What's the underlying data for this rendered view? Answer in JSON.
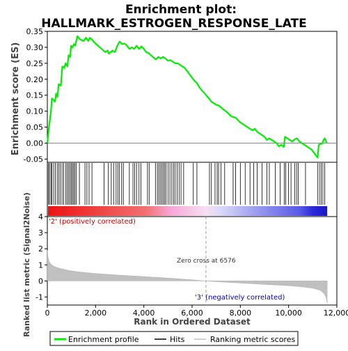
{
  "title_line1": "Enrichment plot:",
  "title_line2": "HALLMARK_ESTROGEN_RESPONSE_LATE",
  "colors": {
    "enrichment_line": "#00ee00",
    "hits": "#000000",
    "metric_fill": "#c0c0c0",
    "pos_label": "#cc0000",
    "neg_label": "#0000cc",
    "zero_line": "#a0a0a0"
  },
  "chart_data": {
    "type": "line",
    "panels": [
      "enrichment_score",
      "hits",
      "ranked_metric"
    ],
    "enrichment": {
      "ylabel": "Enrichment score (ES)",
      "ylim": [
        -0.06,
        0.35
      ],
      "yticks": [
        "-0.05",
        "0.00",
        "0.05",
        "0.10",
        "0.15",
        "0.20",
        "0.25",
        "0.30",
        "0.35"
      ],
      "ytick_values": [
        -0.05,
        0.0,
        0.05,
        0.1,
        0.15,
        0.2,
        0.25,
        0.3,
        0.35
      ],
      "points": [
        [
          0,
          0.0
        ],
        [
          60,
          0.045
        ],
        [
          150,
          0.1
        ],
        [
          190,
          0.14
        ],
        [
          320,
          0.13
        ],
        [
          360,
          0.155
        ],
        [
          420,
          0.145
        ],
        [
          470,
          0.185
        ],
        [
          560,
          0.18
        ],
        [
          620,
          0.24
        ],
        [
          700,
          0.235
        ],
        [
          760,
          0.25
        ],
        [
          830,
          0.24
        ],
        [
          880,
          0.275
        ],
        [
          950,
          0.27
        ],
        [
          980,
          0.305
        ],
        [
          1050,
          0.3
        ],
        [
          1100,
          0.31
        ],
        [
          1150,
          0.305
        ],
        [
          1250,
          0.335
        ],
        [
          1350,
          0.325
        ],
        [
          1500,
          0.32
        ],
        [
          1600,
          0.33
        ],
        [
          1700,
          0.32
        ],
        [
          1760,
          0.33
        ],
        [
          1850,
          0.325
        ],
        [
          1950,
          0.315
        ],
        [
          2100,
          0.305
        ],
        [
          2250,
          0.295
        ],
        [
          2400,
          0.285
        ],
        [
          2500,
          0.29
        ],
        [
          2550,
          0.28
        ],
        [
          2700,
          0.29
        ],
        [
          2800,
          0.285
        ],
        [
          2900,
          0.305
        ],
        [
          3000,
          0.318
        ],
        [
          3100,
          0.31
        ],
        [
          3200,
          0.312
        ],
        [
          3300,
          0.305
        ],
        [
          3400,
          0.295
        ],
        [
          3500,
          0.3
        ],
        [
          3600,
          0.295
        ],
        [
          3700,
          0.305
        ],
        [
          3800,
          0.295
        ],
        [
          3900,
          0.303
        ],
        [
          4000,
          0.295
        ],
        [
          4100,
          0.285
        ],
        [
          4200,
          0.282
        ],
        [
          4300,
          0.275
        ],
        [
          4400,
          0.268
        ],
        [
          4500,
          0.262
        ],
        [
          4600,
          0.27
        ],
        [
          4700,
          0.265
        ],
        [
          4800,
          0.27
        ],
        [
          4900,
          0.265
        ],
        [
          5000,
          0.258
        ],
        [
          5100,
          0.26
        ],
        [
          5200,
          0.255
        ],
        [
          5300,
          0.25
        ],
        [
          5400,
          0.25
        ],
        [
          5500,
          0.245
        ],
        [
          5600,
          0.24
        ],
        [
          5700,
          0.235
        ],
        [
          5800,
          0.225
        ],
        [
          5900,
          0.215
        ],
        [
          6000,
          0.205
        ],
        [
          6100,
          0.195
        ],
        [
          6200,
          0.188
        ],
        [
          6300,
          0.175
        ],
        [
          6400,
          0.165
        ],
        [
          6500,
          0.158
        ],
        [
          6600,
          0.148
        ],
        [
          6700,
          0.14
        ],
        [
          6800,
          0.13
        ],
        [
          6900,
          0.125
        ],
        [
          7000,
          0.12
        ],
        [
          7100,
          0.118
        ],
        [
          7200,
          0.112
        ],
        [
          7300,
          0.105
        ],
        [
          7400,
          0.1
        ],
        [
          7500,
          0.093
        ],
        [
          7600,
          0.085
        ],
        [
          7700,
          0.082
        ],
        [
          7800,
          0.08
        ],
        [
          7900,
          0.072
        ],
        [
          8000,
          0.065
        ],
        [
          8100,
          0.06
        ],
        [
          8200,
          0.055
        ],
        [
          8300,
          0.05
        ],
        [
          8400,
          0.045
        ],
        [
          8500,
          0.04
        ],
        [
          8600,
          0.045
        ],
        [
          8700,
          0.035
        ],
        [
          8800,
          0.03
        ],
        [
          8900,
          0.025
        ],
        [
          9000,
          0.02
        ],
        [
          9100,
          0.01
        ],
        [
          9200,
          0.015
        ],
        [
          9300,
          0.01
        ],
        [
          9400,
          0.005
        ],
        [
          9500,
          0.0
        ],
        [
          9600,
          -0.01
        ],
        [
          9700,
          -0.005
        ],
        [
          9800,
          -0.012
        ],
        [
          9850,
          0.02
        ],
        [
          9950,
          0.015
        ],
        [
          10050,
          0.01
        ],
        [
          10150,
          0.005
        ],
        [
          10250,
          0.012
        ],
        [
          10350,
          0.015
        ],
        [
          10450,
          0.005
        ],
        [
          10550,
          0.0
        ],
        [
          10650,
          -0.005
        ],
        [
          10750,
          -0.01
        ],
        [
          10850,
          -0.015
        ],
        [
          10950,
          -0.02
        ],
        [
          11050,
          -0.03
        ],
        [
          11150,
          -0.04
        ],
        [
          11200,
          -0.045
        ],
        [
          11250,
          -0.005
        ],
        [
          11350,
          -0.002
        ],
        [
          11400,
          0.0
        ],
        [
          11450,
          0.01
        ],
        [
          11500,
          0.015
        ],
        [
          11550,
          0.005
        ],
        [
          11600,
          0.002
        ]
      ]
    },
    "hits_positions": [
      50,
      90,
      150,
      190,
      260,
      330,
      410,
      470,
      540,
      610,
      680,
      760,
      820,
      880,
      940,
      990,
      1040,
      1090,
      1140,
      1200,
      1330,
      1560,
      1640,
      1730,
      1850,
      2350,
      2530,
      2650,
      2750,
      2850,
      2920,
      2990,
      3080,
      3150,
      3400,
      3550,
      3620,
      3700,
      3800,
      3880,
      4150,
      4220,
      4480,
      4560,
      4620,
      4680,
      4740,
      4800,
      4860,
      4920,
      5000,
      5080,
      5160,
      5230,
      5300,
      5380,
      5460,
      5540,
      5650,
      6050,
      6200,
      6720,
      6800,
      6950,
      7040,
      7100,
      7200,
      7350,
      7700,
      7800,
      8000,
      8200,
      8400,
      8550,
      8700,
      8900,
      9100,
      9200,
      9450,
      9650,
      9820,
      9880,
      10000,
      10100,
      10250,
      10330,
      10400,
      10700,
      11200,
      11280,
      11350,
      11420,
      11500
    ],
    "metric": {
      "ylabel": "Ranked list metric (Signal2Noise)",
      "ylim": [
        -1.5,
        4
      ],
      "yticks": [
        "-1",
        "0",
        "1",
        "2",
        "3",
        "4"
      ],
      "ytick_values": [
        -1,
        0,
        1,
        2,
        3,
        4
      ],
      "curve": [
        [
          0,
          1.9
        ],
        [
          30,
          1.45
        ],
        [
          80,
          1.2
        ],
        [
          150,
          1.05
        ],
        [
          250,
          0.93
        ],
        [
          400,
          0.83
        ],
        [
          600,
          0.75
        ],
        [
          900,
          0.65
        ],
        [
          1300,
          0.56
        ],
        [
          2000,
          0.46
        ],
        [
          3000,
          0.36
        ],
        [
          4000,
          0.27
        ],
        [
          5000,
          0.18
        ],
        [
          6000,
          0.07
        ],
        [
          6576,
          0.0
        ],
        [
          7000,
          -0.05
        ],
        [
          8000,
          -0.13
        ],
        [
          9000,
          -0.22
        ],
        [
          10000,
          -0.3
        ],
        [
          10500,
          -0.36
        ],
        [
          11000,
          -0.45
        ],
        [
          11300,
          -0.58
        ],
        [
          11450,
          -0.75
        ],
        [
          11550,
          -1.0
        ],
        [
          11600,
          -1.4
        ]
      ],
      "zero_cross_value": 6576,
      "zero_cross_label": "Zero cross at 6576",
      "pos_label": "'2' (positively correlated)",
      "neg_label": "'3' (negatively correlated)"
    },
    "x": {
      "xlabel": "Rank in Ordered Dataset",
      "xlim": [
        0,
        12000
      ],
      "xticks": [
        "0",
        "2,000",
        "4,000",
        "6,000",
        "8,000",
        "10,000",
        "12,000"
      ],
      "xtick_values": [
        0,
        2000,
        4000,
        6000,
        8000,
        10000,
        12000
      ],
      "n_genes": 11600
    },
    "legend": {
      "placement": "bottom",
      "entries": [
        "Enrichment profile",
        "Hits",
        "Ranking metric scores"
      ]
    }
  }
}
